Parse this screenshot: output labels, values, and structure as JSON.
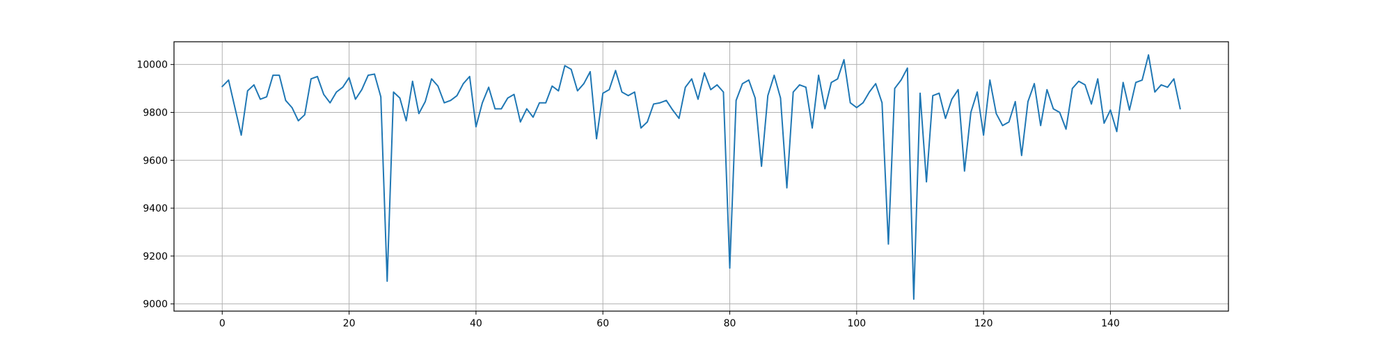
{
  "chart_data": {
    "type": "line",
    "title": "",
    "xlabel": "",
    "ylabel": "",
    "xlim": [
      -7.6,
      158.6
    ],
    "ylim": [
      8970,
      10095
    ],
    "xticks": [
      0,
      20,
      40,
      60,
      80,
      100,
      120,
      140
    ],
    "xtick_labels": [
      "0",
      "20",
      "40",
      "60",
      "80",
      "100",
      "120",
      "140"
    ],
    "yticks": [
      9000,
      9200,
      9400,
      9600,
      9800,
      10000
    ],
    "ytick_labels": [
      "9000",
      "9200",
      "9400",
      "9600",
      "9800",
      "10000"
    ],
    "grid": true,
    "legend": "none",
    "colors": {
      "series": "#1f77b4",
      "grid": "#b0b0b0",
      "axes": "#000000"
    },
    "series": [
      {
        "x": [
          0,
          1,
          2,
          3,
          4,
          5,
          6,
          7,
          8,
          9,
          10,
          11,
          12,
          13,
          14,
          15,
          16,
          17,
          18,
          19,
          20,
          21,
          22,
          23,
          24,
          25,
          26,
          27,
          28,
          29,
          30,
          31,
          32,
          33,
          34,
          35,
          36,
          37,
          38,
          39,
          40,
          41,
          42,
          43,
          44,
          45,
          46,
          47,
          48,
          49,
          50,
          51,
          52,
          53,
          54,
          55,
          56,
          57,
          58,
          59,
          60,
          61,
          62,
          63,
          64,
          65,
          66,
          67,
          68,
          69,
          70,
          71,
          72,
          73,
          74,
          75,
          76,
          77,
          78,
          79,
          80,
          81,
          82,
          83,
          84,
          85,
          86,
          87,
          88,
          89,
          90,
          91,
          92,
          93,
          94,
          95,
          96,
          97,
          98,
          99,
          100,
          101,
          102,
          103,
          104,
          105,
          106,
          107,
          108,
          109,
          110,
          111,
          112,
          113,
          114,
          115,
          116,
          117,
          118,
          119,
          120,
          121,
          122,
          123,
          124,
          125,
          126,
          127,
          128,
          129,
          130,
          131,
          132,
          133,
          134,
          135,
          136,
          137,
          138,
          139,
          140,
          141,
          142,
          143,
          144,
          145,
          146,
          147,
          148,
          149,
          150,
          151
        ],
        "values": [
          9908,
          9935,
          9820,
          9705,
          9890,
          9915,
          9855,
          9865,
          9955,
          9955,
          9850,
          9820,
          9765,
          9790,
          9940,
          9950,
          9875,
          9840,
          9885,
          9905,
          9945,
          9855,
          9895,
          9955,
          9960,
          9865,
          9095,
          9885,
          9860,
          9765,
          9930,
          9795,
          9845,
          9940,
          9910,
          9840,
          9850,
          9870,
          9920,
          9950,
          9740,
          9840,
          9905,
          9815,
          9815,
          9860,
          9875,
          9760,
          9815,
          9780,
          9840,
          9840,
          9910,
          9890,
          9995,
          9980,
          9890,
          9920,
          9970,
          9690,
          9880,
          9895,
          9975,
          9885,
          9870,
          9885,
          9735,
          9760,
          9835,
          9840,
          9850,
          9810,
          9775,
          9905,
          9940,
          9855,
          9965,
          9895,
          9915,
          9885,
          9150,
          9850,
          9920,
          9935,
          9860,
          9575,
          9870,
          9955,
          9860,
          9485,
          9885,
          9915,
          9905,
          9735,
          9955,
          9815,
          9925,
          9940,
          10020,
          9840,
          9820,
          9840,
          9885,
          9920,
          9840,
          9250,
          9900,
          9935,
          9985,
          9020,
          9880,
          9510,
          9870,
          9880,
          9775,
          9855,
          9895,
          9555,
          9800,
          9885,
          9705,
          9935,
          9795,
          9745,
          9760,
          9845,
          9620,
          9845,
          9920,
          9745,
          9895,
          9815,
          9800,
          9730,
          9900,
          9930,
          9915,
          9835,
          9940,
          9755,
          9810,
          9720,
          9925,
          9810,
          9925,
          9935,
          10040,
          9885,
          9915,
          9905,
          9940,
          9815
        ]
      }
    ]
  }
}
